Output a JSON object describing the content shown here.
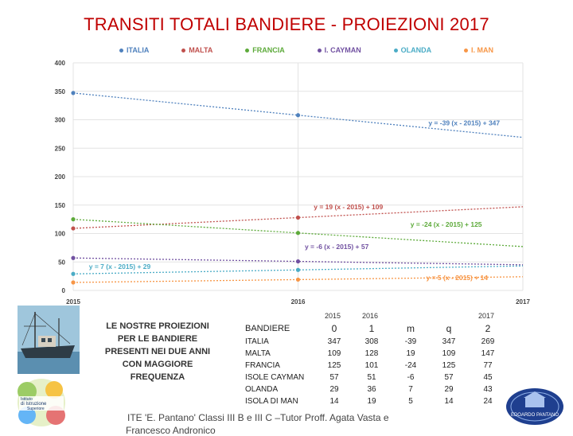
{
  "title": "TRANSITI TOTALI BANDIERE - PROIEZIONI 2017",
  "chart_data": {
    "type": "line",
    "title": "TRANSITI TOTALI BANDIERE - PROIEZIONI 2017",
    "x": [
      2015,
      2016,
      2017
    ],
    "x_tick_labels": [
      "2015",
      "2016",
      "2017"
    ],
    "ylim": [
      0,
      400
    ],
    "y_ticks": [
      0,
      50,
      100,
      150,
      200,
      250,
      300,
      350,
      400
    ],
    "y_tick_labels": [
      "0",
      "50",
      "100",
      "150",
      "200",
      "250",
      "300",
      "350",
      "400"
    ],
    "series": [
      {
        "name": "ITALIA",
        "color": "#4f81bd",
        "points": [
          347,
          308
        ],
        "trend_end": 269,
        "equation": "y = -39 (x - 2015) + 347"
      },
      {
        "name": "MALTA",
        "color": "#c0504d",
        "points": [
          109,
          128
        ],
        "trend_end": 147,
        "equation": "y = 19 (x - 2015) + 109"
      },
      {
        "name": "FRANCIA",
        "color": "#5daa3a",
        "points": [
          125,
          101
        ],
        "trend_end": 77,
        "equation": "y = -24 (x - 2015) + 125"
      },
      {
        "name": "I. CAYMAN",
        "color": "#7151a1",
        "points": [
          57,
          51
        ],
        "trend_end": 45,
        "equation": "y = -6 (x - 2015) + 57"
      },
      {
        "name": "OLANDA",
        "color": "#4bacc6",
        "points": [
          29,
          36
        ],
        "trend_end": 43,
        "equation": "y = 7 (x - 2015) + 29"
      },
      {
        "name": "I. MAN",
        "color": "#f79646",
        "points": [
          14,
          19
        ],
        "trend_end": 24,
        "equation": "y = 5 (x - 2015) + 14"
      }
    ]
  },
  "note": {
    "lines": [
      "LE NOSTRE PROIEZIONI",
      "PER LE BANDIERE",
      "PRESENTI NEI DUE ANNI",
      "CON MAGGIORE",
      "FREQUENZA"
    ]
  },
  "table": {
    "year_labels": {
      "y2015": "2015",
      "y2016": "2016",
      "y2017": "2017"
    },
    "headers": {
      "name": "BANDIERE",
      "v2015": "0",
      "v2016": "1",
      "m": "m",
      "q": "q",
      "v2017": "2"
    },
    "rows": [
      {
        "name": "ITALIA",
        "v2015": "347",
        "v2016": "308",
        "m": "-39",
        "q": "347",
        "v2017": "269"
      },
      {
        "name": "MALTA",
        "v2015": "109",
        "v2016": "128",
        "m": "19",
        "q": "109",
        "v2017": "147"
      },
      {
        "name": "FRANCIA",
        "v2015": "125",
        "v2016": "101",
        "m": "-24",
        "q": "125",
        "v2017": "77"
      },
      {
        "name": "ISOLE CAYMAN",
        "v2015": "57",
        "v2016": "51",
        "m": "-6",
        "q": "57",
        "v2017": "45"
      },
      {
        "name": "OLANDA",
        "v2015": "29",
        "v2016": "36",
        "m": "7",
        "q": "29",
        "v2017": "43"
      },
      {
        "name": "ISOLA DI MAN",
        "v2015": "14",
        "v2016": "19",
        "m": "5",
        "q": "14",
        "v2017": "24"
      }
    ]
  },
  "footer": {
    "line1": "ITE 'E. Pantano' Classi III B e III C –Tutor Proff. Agata Vasta e",
    "line2": "Francesco Andronico"
  },
  "logos": {
    "left_text": [
      "Istituto",
      "di Istruzione",
      "Superiore"
    ],
    "right_text": "EDOARDO PANTANO"
  }
}
